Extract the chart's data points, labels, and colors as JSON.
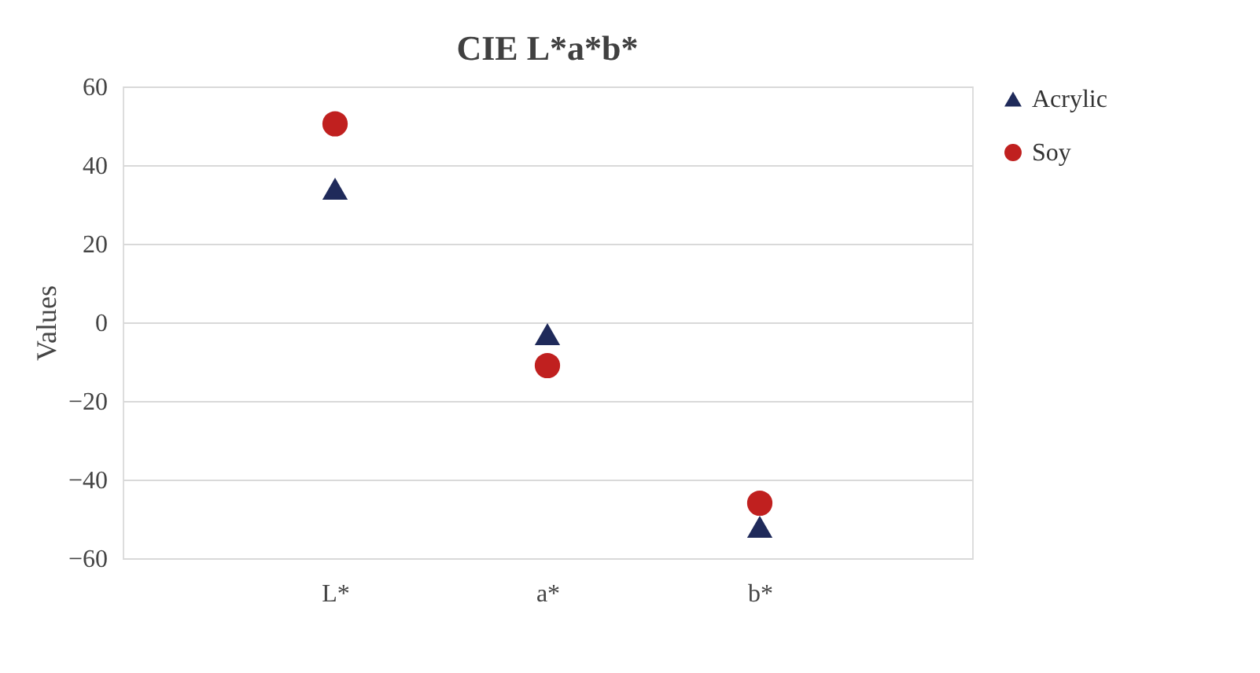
{
  "chart_data": {
    "type": "scatter",
    "title": "CIE L*a*b*",
    "ylabel": "Values",
    "categories": [
      "L*",
      "a*",
      "b*"
    ],
    "series": [
      {
        "name": "Acrylic",
        "color": "#1f2a5a",
        "marker": "triangle",
        "values": [
          34,
          -3,
          -52
        ]
      },
      {
        "name": "Soy",
        "color": "#c0201f",
        "marker": "circle",
        "values": [
          50.5,
          -11,
          -46
        ]
      }
    ],
    "ylim": [
      -60,
      60
    ],
    "yticks": [
      -60,
      -40,
      -20,
      0,
      20,
      40,
      60
    ],
    "grid": "y",
    "legend": "right"
  }
}
